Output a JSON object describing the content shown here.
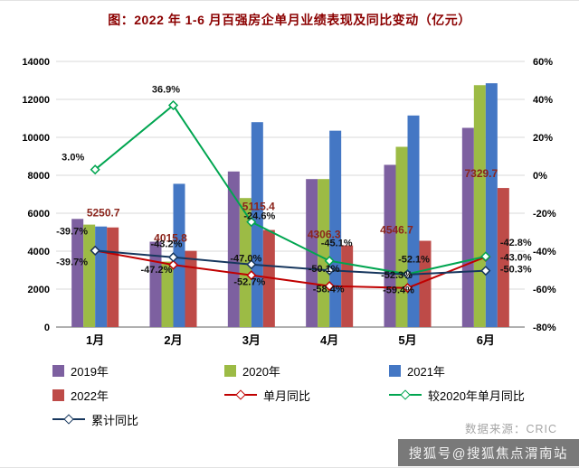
{
  "page": {
    "title": "图：2022 年 1-6 月百强房企单月业绩表现及同比变动（亿元）",
    "source": "数据来源：CRIC",
    "watermark": "搜狐号@搜狐焦点渭南站"
  },
  "chart_data": {
    "type": "bar+line",
    "title": "图：2022 年 1-6 月百强房企单月业绩表现及同比变动（亿元）",
    "categories": [
      "1月",
      "2月",
      "3月",
      "4月",
      "5月",
      "6月"
    ],
    "left_axis": {
      "min": 0,
      "max": 14000,
      "step": 2000,
      "ticks": [
        0,
        2000,
        4000,
        6000,
        8000,
        10000,
        12000,
        14000
      ]
    },
    "right_axis": {
      "min": -80,
      "max": 60,
      "step": 20,
      "unit": "%",
      "ticks": [
        "-80%",
        "-60%",
        "-40%",
        "-20%",
        "0%",
        "20%",
        "40%",
        "60%"
      ]
    },
    "grid": true,
    "legend_position": "below",
    "bar_series": [
      {
        "name": "2019年",
        "color": "#7D60A0",
        "values": [
          5700,
          4500,
          8200,
          7800,
          8550,
          10500
        ]
      },
      {
        "name": "2020年",
        "color": "#9CBB45",
        "values": [
          5400,
          3450,
          6800,
          7800,
          9500,
          12750
        ]
      },
      {
        "name": "2021年",
        "color": "#4477C4",
        "values": [
          5300,
          7550,
          10800,
          10350,
          11150,
          12850
        ]
      },
      {
        "name": "2022年",
        "color": "#BE4B48",
        "values": [
          5250.7,
          4015.8,
          5115.4,
          4306.3,
          4546.7,
          7329.7
        ]
      }
    ],
    "bar_value_labels": [
      "5250.7",
      "4015.8",
      "5115.4",
      "4306.3",
      "4546.7",
      "7329.7"
    ],
    "line_series": [
      {
        "name": "单月同比",
        "color": "#C00000",
        "values": [
          -39.7,
          -47.2,
          -52.7,
          -58.4,
          -59.4,
          -43.0
        ]
      },
      {
        "name": "较2020年单月同比",
        "color": "#00A550",
        "values": [
          3.0,
          36.9,
          -24.6,
          -45.1,
          -52.1,
          -42.8
        ]
      },
      {
        "name": "累计同比",
        "color": "#17375E",
        "values": [
          -39.7,
          -43.2,
          -47.0,
          -50.1,
          -52.3,
          -50.3
        ]
      }
    ]
  },
  "legend": {
    "items": [
      "2019年",
      "2020年",
      "2021年",
      "2022年",
      "单月同比",
      "较2020年单月同比",
      "累计同比"
    ]
  }
}
